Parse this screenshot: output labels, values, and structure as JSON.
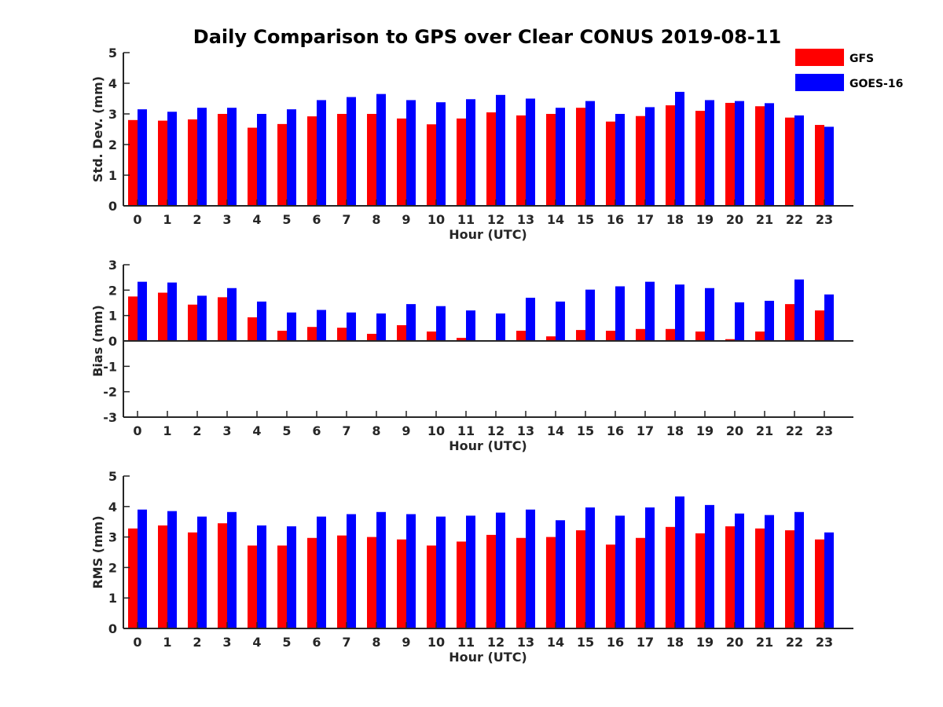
{
  "chart_data": {
    "type": "bar",
    "title": "Daily Comparison to GPS over Clear CONUS 2019-08-11",
    "legend": {
      "placement": "top-right",
      "entries": [
        {
          "name": "GFS",
          "color": "#ff0000"
        },
        {
          "name": "GOES-16",
          "color": "#0000ff"
        }
      ]
    },
    "categories": [
      "0",
      "1",
      "2",
      "3",
      "4",
      "5",
      "6",
      "7",
      "8",
      "9",
      "10",
      "11",
      "12",
      "13",
      "14",
      "15",
      "16",
      "17",
      "18",
      "19",
      "20",
      "21",
      "22",
      "23"
    ],
    "panels": [
      {
        "ylabel": "Std. Dev. (mm)",
        "xlabel": "Hour (UTC)",
        "ylim": [
          0,
          5
        ],
        "yticks": [
          "0",
          "1",
          "2",
          "3",
          "4",
          "5"
        ],
        "series": [
          {
            "name": "GFS",
            "color": "#ff0000",
            "values": [
              2.8,
              2.78,
              2.82,
              3.0,
              2.55,
              2.67,
              2.92,
              3.0,
              3.0,
              2.85,
              2.66,
              2.85,
              3.05,
              2.95,
              3.0,
              3.2,
              2.75,
              2.93,
              3.28,
              3.1,
              3.36,
              3.25,
              2.88,
              2.64
            ]
          },
          {
            "name": "GOES-16",
            "color": "#0000ff",
            "values": [
              3.15,
              3.07,
              3.2,
              3.2,
              3.0,
              3.15,
              3.45,
              3.55,
              3.65,
              3.45,
              3.38,
              3.48,
              3.62,
              3.5,
              3.2,
              3.42,
              3.0,
              3.22,
              3.72,
              3.45,
              3.42,
              3.35,
              2.95,
              2.58
            ]
          }
        ]
      },
      {
        "ylabel": "Bias (mm)",
        "xlabel": "Hour (UTC)",
        "ylim": [
          -3,
          3
        ],
        "yticks": [
          "-3",
          "-2",
          "-1",
          "0",
          "1",
          "2",
          "3"
        ],
        "series": [
          {
            "name": "GFS",
            "color": "#ff0000",
            "values": [
              1.75,
              1.9,
              1.43,
              1.72,
              0.93,
              0.4,
              0.55,
              0.52,
              0.28,
              0.62,
              0.37,
              0.12,
              0.0,
              0.4,
              0.18,
              0.43,
              0.4,
              0.47,
              0.47,
              0.37,
              0.07,
              0.37,
              1.45,
              1.2
            ]
          },
          {
            "name": "GOES-16",
            "color": "#0000ff",
            "values": [
              2.33,
              2.3,
              1.78,
              2.08,
              1.55,
              1.12,
              1.22,
              1.12,
              1.08,
              1.45,
              1.37,
              1.2,
              1.08,
              1.7,
              1.55,
              2.02,
              2.15,
              2.33,
              2.22,
              2.08,
              1.52,
              1.58,
              2.42,
              1.83
            ]
          }
        ]
      },
      {
        "ylabel": "RMS (mm)",
        "xlabel": "Hour (UTC)",
        "ylim": [
          0,
          5
        ],
        "yticks": [
          "0",
          "1",
          "2",
          "3",
          "4",
          "5"
        ],
        "series": [
          {
            "name": "GFS",
            "color": "#ff0000",
            "values": [
              3.28,
              3.38,
              3.15,
              3.45,
              2.72,
              2.72,
              2.97,
              3.05,
              3.0,
              2.92,
              2.72,
              2.85,
              3.07,
              2.97,
              3.0,
              3.22,
              2.75,
              2.97,
              3.33,
              3.12,
              3.35,
              3.28,
              3.22,
              2.92
            ]
          },
          {
            "name": "GOES-16",
            "color": "#0000ff",
            "values": [
              3.9,
              3.85,
              3.67,
              3.82,
              3.38,
              3.35,
              3.67,
              3.75,
              3.82,
              3.75,
              3.67,
              3.7,
              3.8,
              3.9,
              3.55,
              3.97,
              3.7,
              3.97,
              4.33,
              4.05,
              3.77,
              3.72,
              3.82,
              3.15
            ]
          }
        ]
      }
    ]
  }
}
